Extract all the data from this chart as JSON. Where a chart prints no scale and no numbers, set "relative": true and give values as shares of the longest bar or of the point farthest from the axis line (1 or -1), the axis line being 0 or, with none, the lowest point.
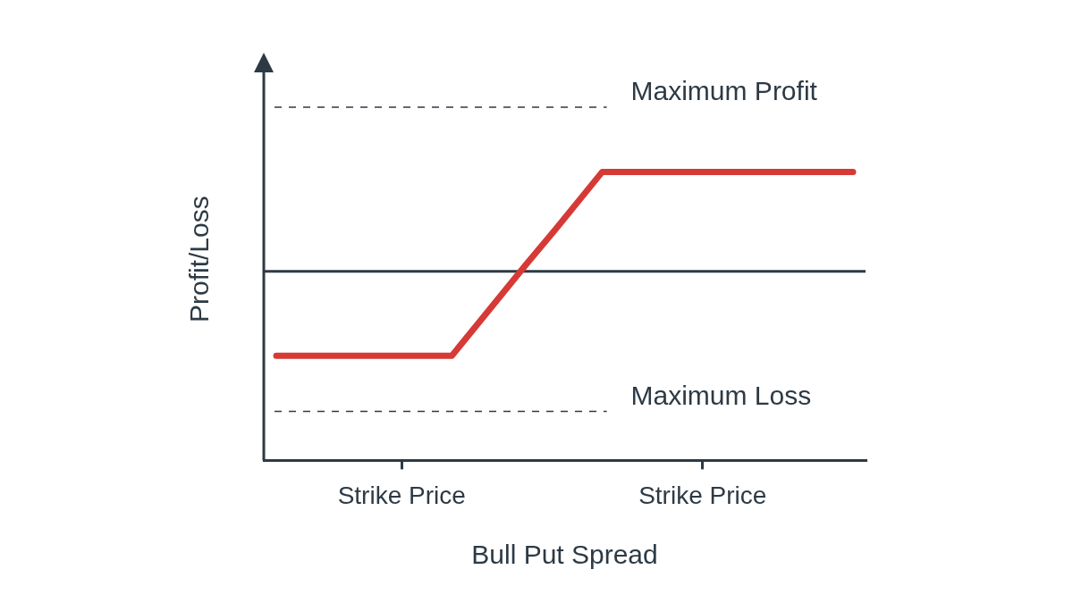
{
  "chart_data": {
    "type": "line",
    "relative": true,
    "xlabel": "Bull Put Spread",
    "ylabel": "Profit/Loss",
    "categories": [
      null,
      null,
      null,
      null,
      null,
      "Strike Price",
      null,
      null,
      null,
      null,
      null,
      null,
      null,
      null,
      null,
      null,
      null,
      "Strike Price",
      null,
      null,
      null,
      null,
      null,
      null
    ],
    "series": [
      {
        "color": "#d63a36",
        "values": [
          -0.85,
          -0.85,
          -0.85,
          -0.85,
          -0.85,
          -0.85,
          -0.85,
          -0.85,
          -0.54,
          -0.23,
          0.08,
          0.38,
          0.69,
          1,
          1,
          1,
          1,
          1,
          1,
          1,
          1,
          1,
          1,
          1
        ]
      }
    ],
    "ref_lines": [
      {
        "axis": "y",
        "value": 0,
        "color": "#2d3a45",
        "line_style": "solid"
      },
      {
        "axis": "y",
        "value": 1.65,
        "label": "Maximum Profit",
        "color": "#2d3a45",
        "line_style": "dashed"
      },
      {
        "axis": "y",
        "value": -1.41,
        "label": "Maximum Loss",
        "color": "#2d3a45",
        "line_style": "dashed"
      }
    ],
    "legend": false,
    "grid": false,
    "marker": "none",
    "line_style": "solid"
  }
}
